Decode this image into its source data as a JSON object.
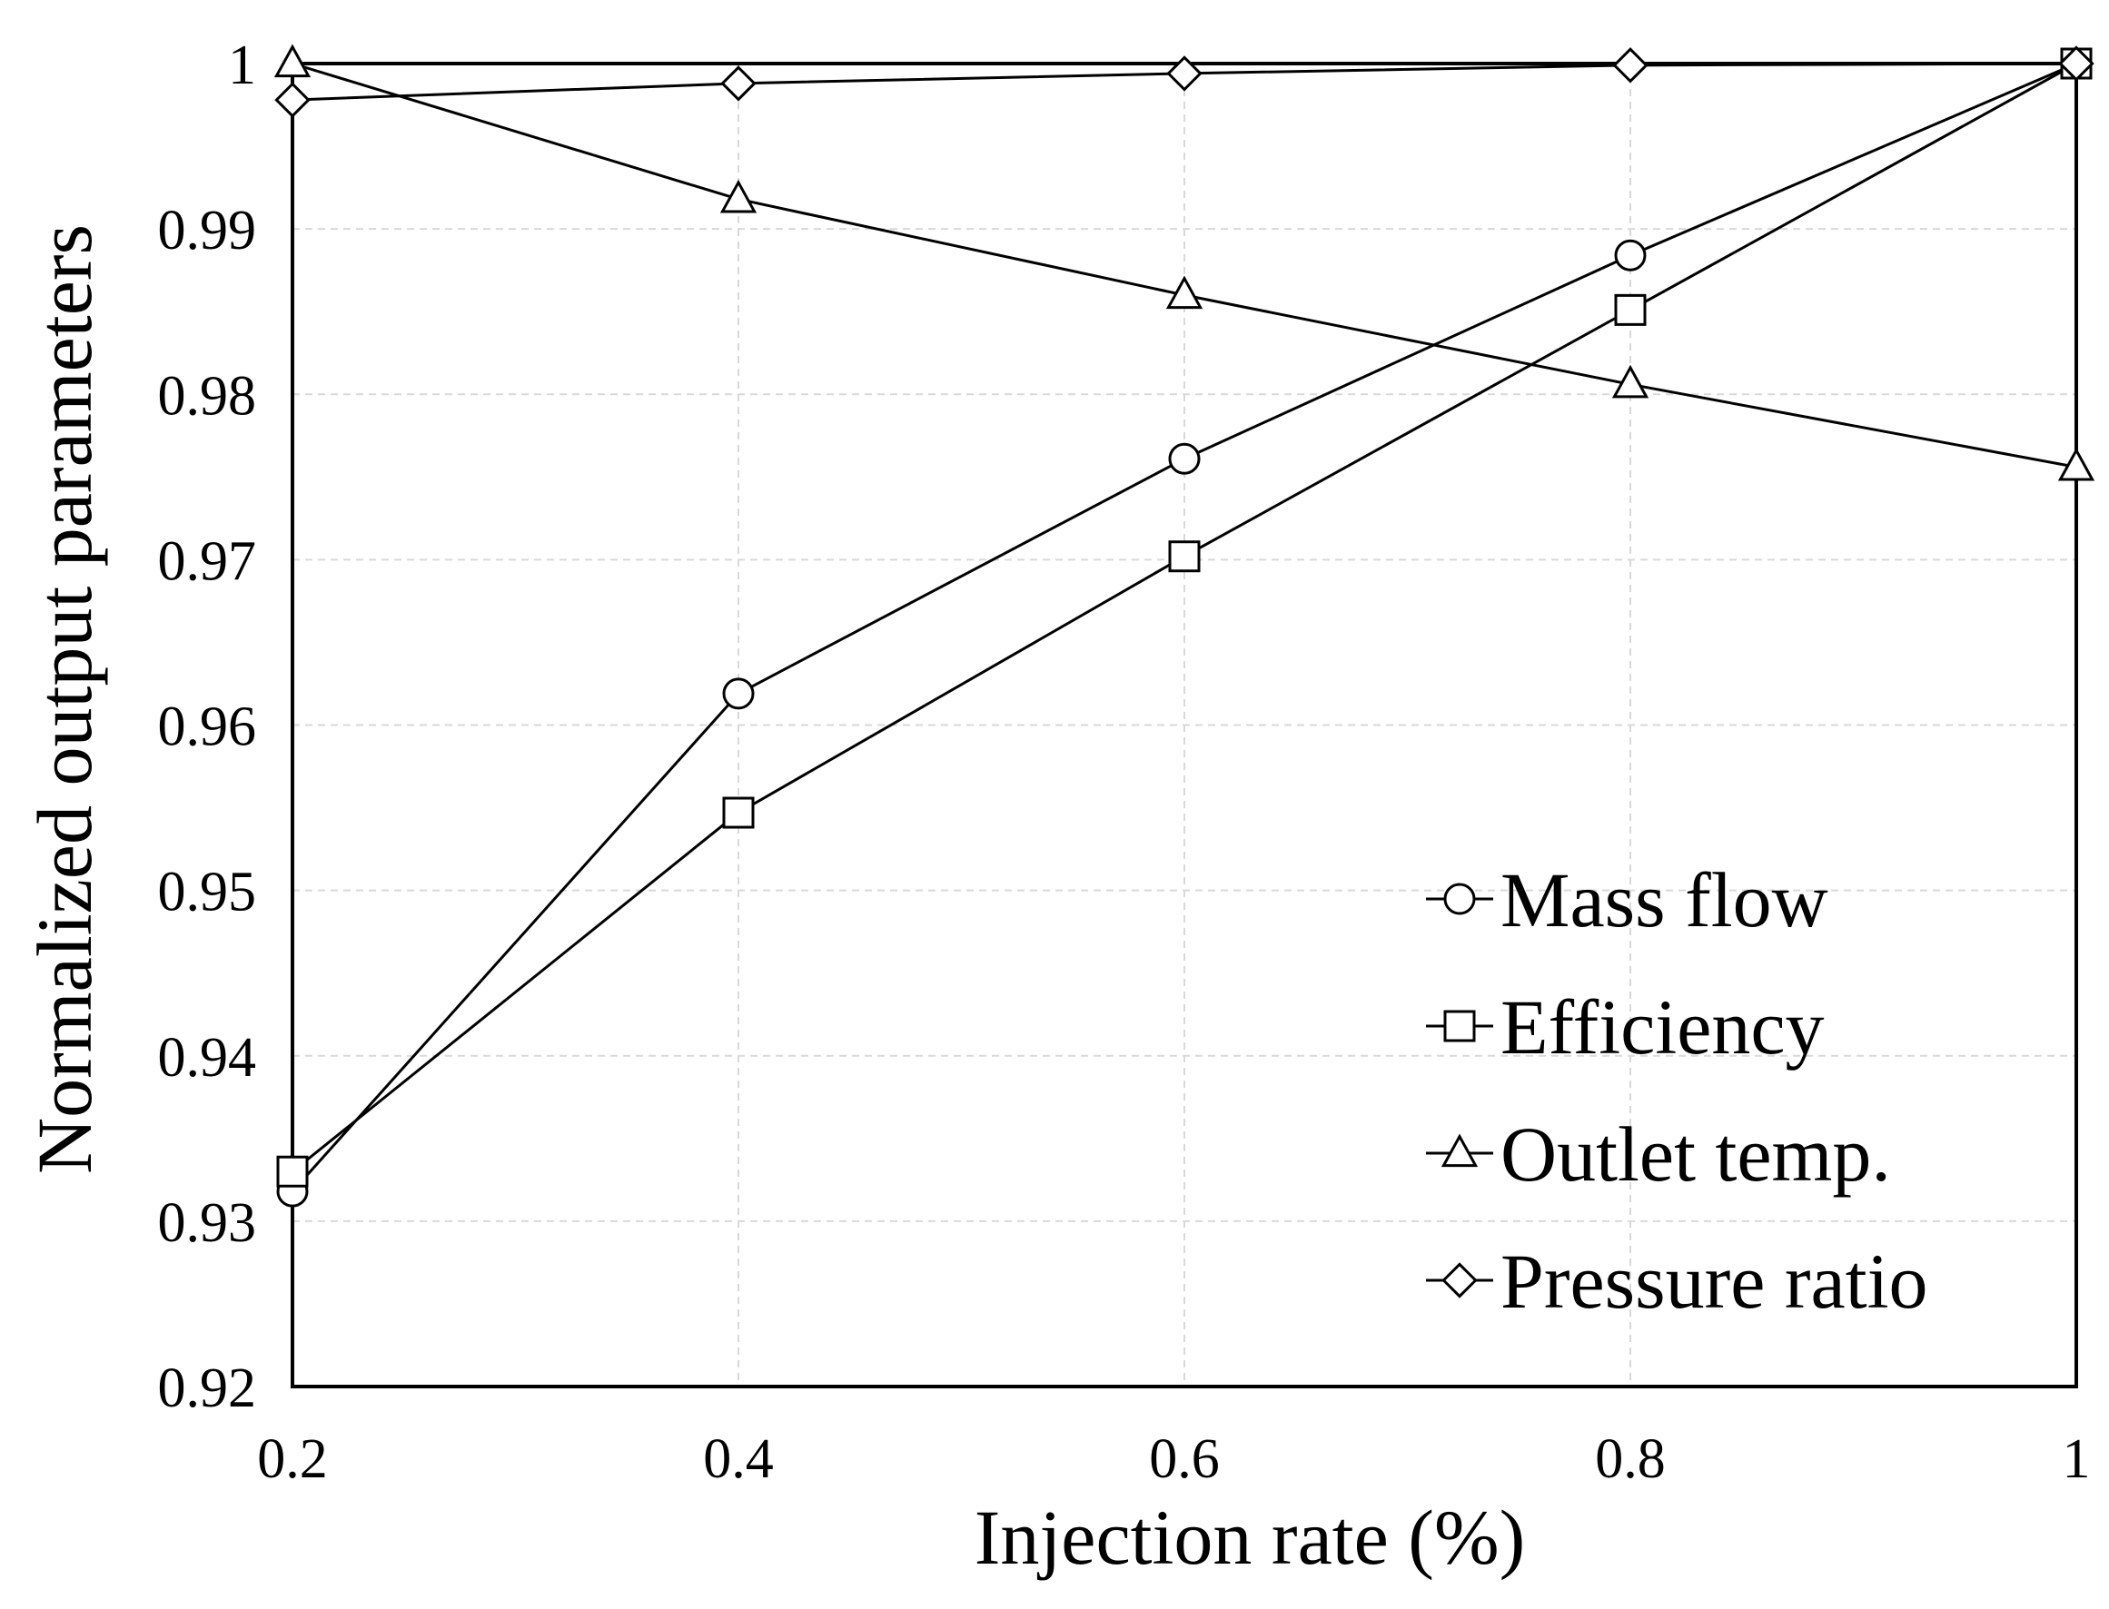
{
  "chart_data": {
    "type": "line",
    "xlabel": "Injection rate (%)",
    "ylabel": "Normalized output parameters",
    "x": [
      0.2,
      0.4,
      0.6,
      0.8,
      1
    ],
    "xlim": [
      0.2,
      1
    ],
    "ylim": [
      0.92,
      1
    ],
    "x_ticks": [
      "0.2",
      "0.4",
      "0.6",
      "0.8",
      "1"
    ],
    "y_ticks": [
      "0.92",
      "0.93",
      "0.94",
      "0.95",
      "0.96",
      "0.97",
      "0.98",
      "0.99",
      "1"
    ],
    "grid": true,
    "legend_position": "bottom-right",
    "series": [
      {
        "name": "Mass flow",
        "marker": "circle",
        "values": [
          0.9318,
          0.9619,
          0.9761,
          0.9884,
          1.0
        ]
      },
      {
        "name": "Efficiency",
        "marker": "square",
        "values": [
          0.933,
          0.9547,
          0.9702,
          0.9851,
          1.0
        ]
      },
      {
        "name": "Outlet temp.",
        "marker": "triangle",
        "values": [
          1.0,
          0.9918,
          0.986,
          0.9806,
          0.9756
        ]
      },
      {
        "name": "Pressure ratio",
        "marker": "diamond",
        "values": [
          0.9978,
          0.9988,
          0.9994,
          0.9999,
          1.0
        ]
      }
    ]
  }
}
